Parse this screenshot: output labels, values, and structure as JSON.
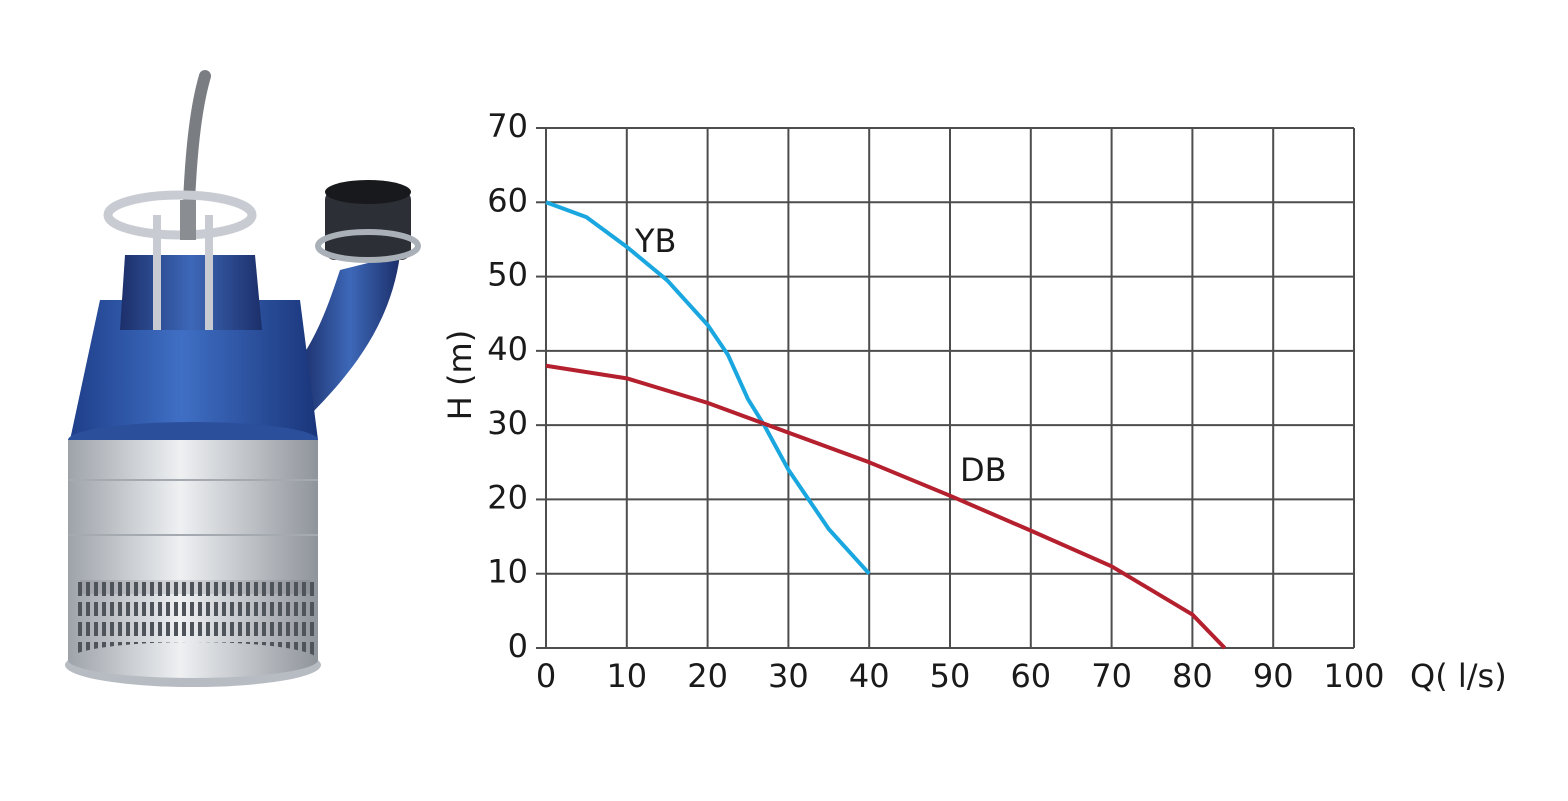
{
  "chart_data": {
    "type": "line",
    "x_label": "Q( l/s)",
    "y_label": "H (m)",
    "xlim": [
      0,
      100
    ],
    "ylim": [
      0,
      70
    ],
    "xticks": [
      0,
      10,
      20,
      30,
      40,
      50,
      60,
      70,
      80,
      90,
      100
    ],
    "yticks": [
      0,
      10,
      20,
      30,
      40,
      50,
      60,
      70
    ],
    "grid": true,
    "series": [
      {
        "name": "YB",
        "color": "#1aa7e0",
        "x": [
          0,
          5,
          10,
          15,
          20,
          22.5,
          25,
          27,
          30,
          35,
          40
        ],
        "values": [
          60,
          58,
          54,
          49.5,
          43.5,
          39.5,
          33.5,
          30,
          24,
          16,
          10
        ]
      },
      {
        "name": "DB",
        "color": "#b5202e",
        "x": [
          0,
          10,
          20,
          30,
          40,
          50,
          60,
          70,
          80,
          84
        ],
        "values": [
          38,
          36.3,
          33,
          29,
          25,
          20.5,
          15.8,
          11,
          4.5,
          0
        ]
      }
    ]
  }
}
